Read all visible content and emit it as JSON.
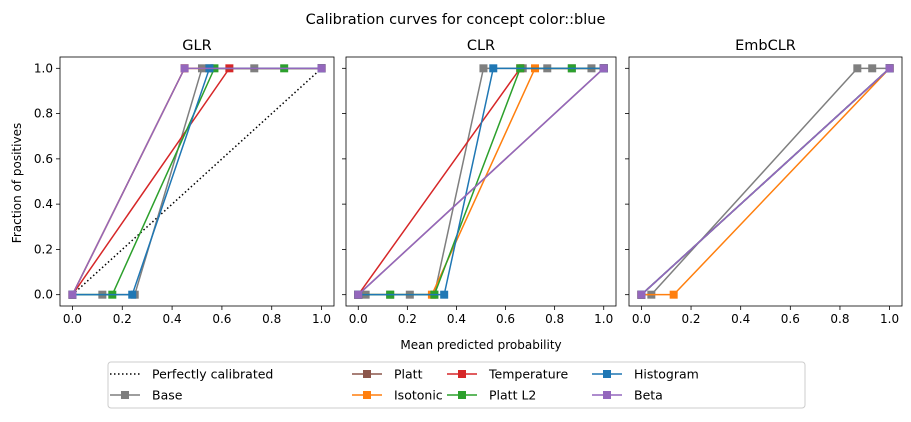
{
  "suptitle": "Calibration curves for concept color::blue",
  "xlabel": "Mean predicted probability",
  "ylabel": "Fraction of positives",
  "colors": {
    "Perfectly calibrated": "#000000",
    "Base": "#7f7f7f",
    "Platt": "#8c564b",
    "Isotonic": "#ff7f0e",
    "Temperature": "#d62728",
    "Platt L2": "#2ca02c",
    "Histogram": "#1f77b4",
    "Beta": "#9467bd"
  },
  "legend": {
    "placement": "bottom-center",
    "entries": [
      "Perfectly calibrated",
      "Base",
      "Platt",
      "Isotonic",
      "Temperature",
      "Platt L2",
      "Histogram",
      "Beta"
    ]
  },
  "chart_data": [
    {
      "type": "line",
      "title": "GLR",
      "xlim": [
        -0.05,
        1.05
      ],
      "ylim": [
        -0.05,
        1.05
      ],
      "xticks": [
        "0.0",
        "0.2",
        "0.4",
        "0.6",
        "0.8",
        "1.0"
      ],
      "yticks": [
        "0.0",
        "0.2",
        "0.4",
        "0.6",
        "0.8",
        "1.0"
      ],
      "show_yticklabels": true,
      "reference_line": {
        "name": "Perfectly calibrated",
        "x": [
          0,
          1
        ],
        "y": [
          0,
          1
        ]
      },
      "series": [
        {
          "name": "Base",
          "x": [
            0.0,
            0.12,
            0.25,
            0.52,
            0.73,
            1.0
          ],
          "y": [
            0,
            0,
            0,
            1,
            1,
            1
          ]
        },
        {
          "name": "Platt",
          "x": [
            0.0,
            0.45,
            0.55,
            1.0
          ],
          "y": [
            0,
            1,
            1,
            1
          ]
        },
        {
          "name": "Isotonic",
          "x": [
            0.0,
            0.45,
            1.0
          ],
          "y": [
            0,
            1,
            1
          ]
        },
        {
          "name": "Temperature",
          "x": [
            0.0,
            0.63,
            1.0
          ],
          "y": [
            0,
            1,
            1
          ]
        },
        {
          "name": "Platt L2",
          "x": [
            0.0,
            0.16,
            0.57,
            0.85,
            1.0
          ],
          "y": [
            0,
            0,
            1,
            1,
            1
          ]
        },
        {
          "name": "Histogram",
          "x": [
            0.0,
            0.24,
            0.55,
            1.0
          ],
          "y": [
            0,
            0,
            1,
            1
          ]
        },
        {
          "name": "Beta",
          "x": [
            0.0,
            0.45,
            1.0
          ],
          "y": [
            0,
            1,
            1
          ]
        }
      ]
    },
    {
      "type": "line",
      "title": "CLR",
      "xlim": [
        -0.05,
        1.05
      ],
      "ylim": [
        -0.05,
        1.05
      ],
      "xticks": [
        "0.0",
        "0.2",
        "0.4",
        "0.6",
        "0.8",
        "1.0"
      ],
      "yticks": [
        "0.0",
        "0.2",
        "0.4",
        "0.6",
        "0.8",
        "1.0"
      ],
      "show_yticklabels": false,
      "series": [
        {
          "name": "Base",
          "x": [
            0.0,
            0.03,
            0.13,
            0.21,
            0.31,
            0.51,
            0.67,
            0.77,
            0.87,
            0.95,
            1.0
          ],
          "y": [
            0,
            0,
            0,
            0,
            0,
            1,
            1,
            1,
            1,
            1,
            1
          ]
        },
        {
          "name": "Platt",
          "x": [
            0.0,
            1.0
          ],
          "y": [
            0,
            1
          ]
        },
        {
          "name": "Isotonic",
          "x": [
            0.0,
            0.3,
            0.72,
            1.0
          ],
          "y": [
            0,
            0,
            1,
            1
          ]
        },
        {
          "name": "Temperature",
          "x": [
            0.0,
            0.66,
            1.0
          ],
          "y": [
            0,
            1,
            1
          ]
        },
        {
          "name": "Platt L2",
          "x": [
            0.0,
            0.13,
            0.31,
            0.66,
            0.87,
            1.0
          ],
          "y": [
            0,
            0,
            0,
            1,
            1,
            1
          ]
        },
        {
          "name": "Histogram",
          "x": [
            0.0,
            0.35,
            0.55,
            1.0
          ],
          "y": [
            0,
            0,
            1,
            1
          ]
        },
        {
          "name": "Beta",
          "x": [
            0.0,
            1.0
          ],
          "y": [
            0,
            1
          ]
        }
      ]
    },
    {
      "type": "line",
      "title": "EmbCLR",
      "xlim": [
        -0.05,
        1.05
      ],
      "ylim": [
        -0.05,
        1.05
      ],
      "xticks": [
        "0.0",
        "0.2",
        "0.4",
        "0.6",
        "0.8",
        "1.0"
      ],
      "yticks": [
        "0.0",
        "0.2",
        "0.4",
        "0.6",
        "0.8",
        "1.0"
      ],
      "show_yticklabels": false,
      "series": [
        {
          "name": "Base",
          "x": [
            0.0,
            0.04,
            0.87,
            0.93,
            1.0
          ],
          "y": [
            0,
            0,
            1,
            1,
            1
          ]
        },
        {
          "name": "Platt",
          "x": [
            0.0,
            1.0
          ],
          "y": [
            0,
            1
          ]
        },
        {
          "name": "Isotonic",
          "x": [
            0.0,
            0.13,
            1.0
          ],
          "y": [
            0,
            0,
            1
          ]
        },
        {
          "name": "Temperature",
          "x": [
            0.0,
            1.0
          ],
          "y": [
            0,
            1
          ]
        },
        {
          "name": "Platt L2",
          "x": [
            0.0,
            1.0
          ],
          "y": [
            0,
            1
          ]
        },
        {
          "name": "Histogram",
          "x": [
            0.0,
            1.0
          ],
          "y": [
            0,
            1
          ]
        },
        {
          "name": "Beta",
          "x": [
            0.0,
            1.0
          ],
          "y": [
            0,
            1
          ]
        }
      ]
    }
  ]
}
